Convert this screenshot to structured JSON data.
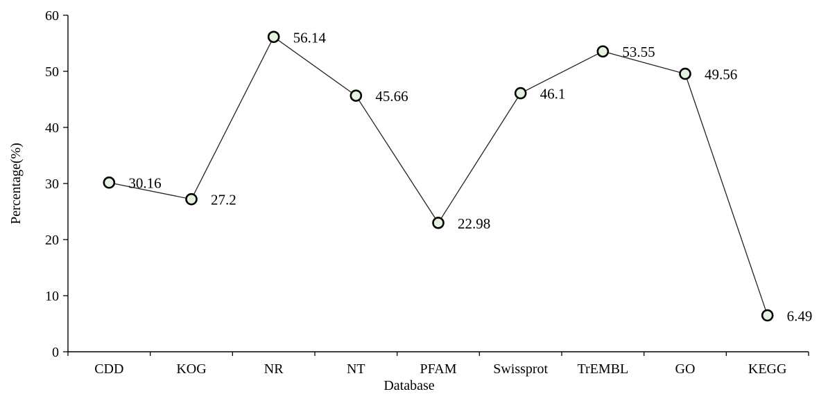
{
  "chart_data": {
    "type": "line",
    "title": "",
    "xlabel": "Database",
    "ylabel": "Percentage(%)",
    "categories": [
      "CDD",
      "KOG",
      "NR",
      "NT",
      "PFAM",
      "Swissprot",
      "TrEMBL",
      "GO",
      "KEGG"
    ],
    "values": [
      30.16,
      27.2,
      56.14,
      45.66,
      22.98,
      46.1,
      53.55,
      49.56,
      6.49
    ],
    "data_labels": [
      "30.16",
      "27.2",
      "56.14",
      "45.66",
      "22.98",
      "46.1",
      "53.55",
      "49.56",
      "6.49"
    ],
    "ylim": [
      0,
      60
    ],
    "yticks": [
      0,
      10,
      20,
      30,
      40,
      50,
      60
    ],
    "grid": false,
    "legend": "none",
    "marker_fill": "#e6f2e0",
    "line_color": "#222222"
  }
}
